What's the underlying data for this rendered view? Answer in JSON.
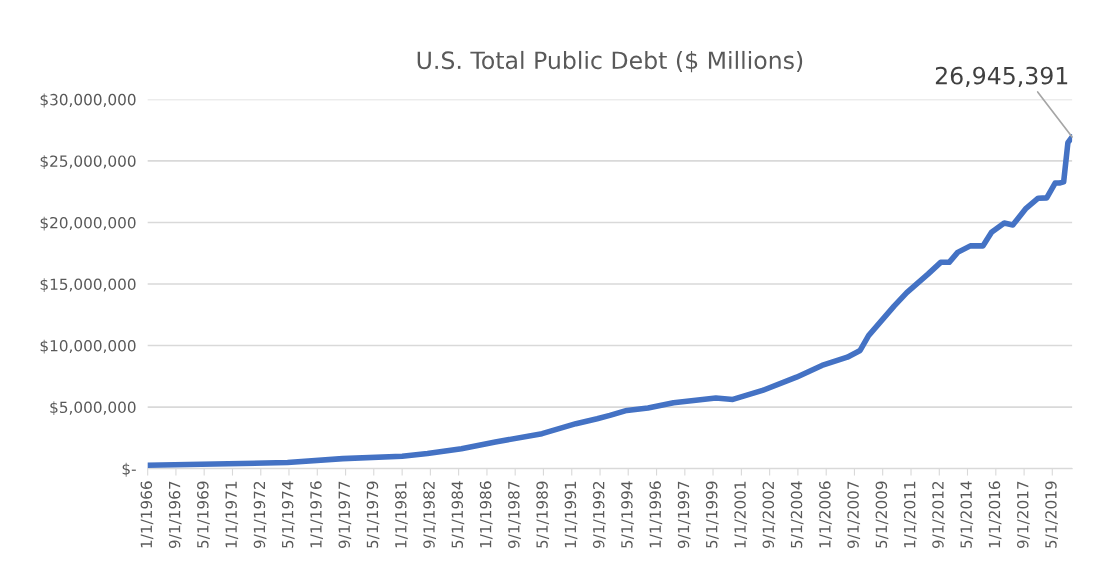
{
  "chart_data": {
    "type": "line",
    "title": "U.S. Total Public Debt ($ Millions)",
    "x": [
      "1966-01",
      "1970-10",
      "1974-04",
      "1977-07",
      "1981-01",
      "1982-07",
      "1984-07",
      "1986-07",
      "1989-04",
      "1991-04",
      "1992-07",
      "1993-04",
      "1994-04",
      "1995-07",
      "1997-01",
      "1999-07",
      "2000-07",
      "2002-04",
      "2004-04",
      "2005-10",
      "2007-04",
      "2008-01",
      "2008-07",
      "2010-01",
      "2010-10",
      "2012-01",
      "2012-10",
      "2013-04",
      "2013-10",
      "2014-07",
      "2015-04",
      "2015-10",
      "2016-07",
      "2017-01",
      "2017-10",
      "2018-07",
      "2019-01",
      "2019-07",
      "2019-10",
      "2020-01",
      "2020-04",
      "2020-07"
    ],
    "series": [
      {
        "color": "#4472c4",
        "values": [
          270000,
          400000,
          490000,
          810000,
          1000000,
          1220000,
          1620000,
          2160000,
          2840000,
          3650000,
          4050000,
          4320000,
          4730000,
          4920000,
          5350000,
          5730000,
          5620000,
          6350000,
          7430000,
          8380000,
          9050000,
          9600000,
          10800000,
          13200000,
          14300000,
          15800000,
          16760000,
          16760000,
          17570000,
          18100000,
          18100000,
          19200000,
          19950000,
          19800000,
          21100000,
          21970000,
          22000000,
          23200000,
          23200000,
          23300000,
          26480000,
          26945391
        ]
      }
    ],
    "xlim": [
      "1966-01",
      "2020-07"
    ],
    "xticks": [
      {
        "value": "1966-01",
        "label": "1/1/1966"
      },
      {
        "value": "1967-09",
        "label": "9/1/1967"
      },
      {
        "value": "1969-05",
        "label": "5/1/1969"
      },
      {
        "value": "1971-01",
        "label": "1/1/1971"
      },
      {
        "value": "1972-09",
        "label": "9/1/1972"
      },
      {
        "value": "1974-05",
        "label": "5/1/1974"
      },
      {
        "value": "1976-01",
        "label": "1/1/1976"
      },
      {
        "value": "1977-09",
        "label": "9/1/1977"
      },
      {
        "value": "1979-05",
        "label": "5/1/1979"
      },
      {
        "value": "1981-01",
        "label": "1/1/1981"
      },
      {
        "value": "1982-09",
        "label": "9/1/1982"
      },
      {
        "value": "1984-05",
        "label": "5/1/1984"
      },
      {
        "value": "1986-01",
        "label": "1/1/1986"
      },
      {
        "value": "1987-09",
        "label": "9/1/1987"
      },
      {
        "value": "1989-05",
        "label": "5/1/1989"
      },
      {
        "value": "1991-01",
        "label": "1/1/1991"
      },
      {
        "value": "1992-09",
        "label": "9/1/1992"
      },
      {
        "value": "1994-05",
        "label": "5/1/1994"
      },
      {
        "value": "1996-01",
        "label": "1/1/1996"
      },
      {
        "value": "1997-09",
        "label": "9/1/1997"
      },
      {
        "value": "1999-05",
        "label": "5/1/1999"
      },
      {
        "value": "2001-01",
        "label": "1/1/2001"
      },
      {
        "value": "2002-09",
        "label": "9/1/2002"
      },
      {
        "value": "2004-05",
        "label": "5/1/2004"
      },
      {
        "value": "2006-01",
        "label": "1/1/2006"
      },
      {
        "value": "2007-09",
        "label": "9/1/2007"
      },
      {
        "value": "2009-05",
        "label": "5/1/2009"
      },
      {
        "value": "2011-01",
        "label": "1/1/2011"
      },
      {
        "value": "2012-09",
        "label": "9/1/2012"
      },
      {
        "value": "2014-05",
        "label": "5/1/2014"
      },
      {
        "value": "2016-01",
        "label": "1/1/2016"
      },
      {
        "value": "2017-09",
        "label": "9/1/2017"
      },
      {
        "value": "2019-05",
        "label": "5/1/2019"
      }
    ],
    "ylim": [
      0,
      30000000
    ],
    "yticks": [
      {
        "value": 0,
        "label": "$-"
      },
      {
        "value": 5000000,
        "label": "$5,000,000"
      },
      {
        "value": 10000000,
        "label": "$10,000,000"
      },
      {
        "value": 15000000,
        "label": "$15,000,000"
      },
      {
        "value": 20000000,
        "label": "$20,000,000"
      },
      {
        "value": 25000000,
        "label": "$25,000,000"
      },
      {
        "value": 30000000,
        "label": "$30,000,000"
      }
    ],
    "grid": "y",
    "annotations": [
      {
        "text": "26,945,391",
        "x": "2020-07",
        "y": 26945391
      }
    ]
  }
}
